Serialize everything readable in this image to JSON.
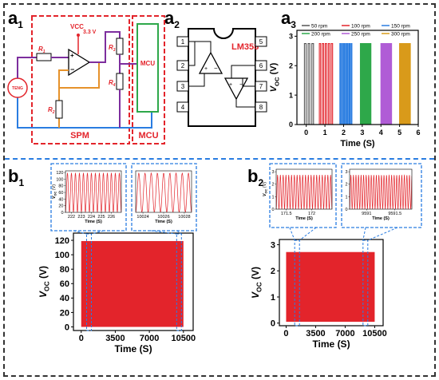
{
  "labels": {
    "a1": "a",
    "a1s": "1",
    "a2": "a",
    "a2s": "2",
    "a3": "a",
    "a3s": "3",
    "b1": "b",
    "b1s": "1",
    "b2": "b",
    "b2s": "2"
  },
  "circuit": {
    "vcc": "VCC",
    "vcc_value": "3.3 V",
    "r1": "R",
    "r1s": "1",
    "r2": "R",
    "r2s": "2",
    "r3": "R",
    "r3s": "3",
    "r4": "R",
    "r4s": "4",
    "teng": "TENG",
    "mcu_box": "MCU",
    "spm": "SPM",
    "mcu": "MCU",
    "colors": {
      "red": "#e3242b",
      "purple": "#7d2e9e",
      "orange": "#e6922b",
      "blue": "#2a7de1",
      "green": "#2ea84a"
    }
  },
  "ic": {
    "name": "LM358",
    "pins": [
      "1",
      "2",
      "3",
      "4",
      "5",
      "6",
      "7",
      "8"
    ]
  },
  "chart_data": [
    {
      "id": "a3",
      "type": "line",
      "xlabel": "Time (S)",
      "ylabel": "V",
      "ylabel_sub": "OC",
      "ylabel_unit": " (V)",
      "xlim": [
        -0.5,
        6
      ],
      "ylim": [
        0,
        3.2
      ],
      "xticks": [
        0,
        1,
        2,
        3,
        4,
        5,
        6
      ],
      "yticks": [
        0,
        1,
        2,
        3
      ],
      "series": [
        {
          "name": "50 rpm",
          "color": "#555555",
          "bursts": [
            [
              -0.1,
              0.5
            ]
          ],
          "pulses": 3,
          "peak": 2.75
        },
        {
          "name": "100 rpm",
          "color": "#e3242b",
          "bursts": [
            [
              0.7,
              1.5
            ]
          ],
          "pulses": 5,
          "peak": 2.75
        },
        {
          "name": "150 rpm",
          "color": "#2a7de1",
          "bursts": [
            [
              1.8,
              2.5
            ]
          ],
          "pulses": 7,
          "peak": 2.75
        },
        {
          "name": "200 rpm",
          "color": "#2ea84a",
          "bursts": [
            [
              2.9,
              3.5
            ]
          ],
          "pulses": 9,
          "peak": 2.75
        },
        {
          "name": "250 rpm",
          "color": "#b05cd6",
          "bursts": [
            [
              4.0,
              4.6
            ]
          ],
          "pulses": 11,
          "peak": 2.75
        },
        {
          "name": "300 rpm",
          "color": "#d99a1a",
          "bursts": [
            [
              5.0,
              5.6
            ]
          ],
          "pulses": 13,
          "peak": 2.75
        }
      ]
    },
    {
      "id": "b1",
      "type": "area",
      "xlabel": "Time (S)",
      "ylabel": "V",
      "ylabel_sub": "OC",
      "ylabel_unit": " (V)",
      "xlim": [
        -800,
        11500
      ],
      "ylim": [
        -5,
        130
      ],
      "xticks": [
        0,
        3500,
        7000,
        10500
      ],
      "yticks": [
        0,
        20,
        40,
        60,
        80,
        100,
        120
      ],
      "signal": {
        "x_start": 0,
        "x_end": 10500,
        "min": 0,
        "max": 119,
        "color": "#e3242b"
      }
    },
    {
      "id": "b1-inset1",
      "type": "line",
      "xlabel": "Time (S)",
      "ylabel": "V",
      "ylabel_sub": "OC",
      "ylabel_unit": " (V)",
      "xlim": [
        221.4,
        227
      ],
      "ylim": [
        0,
        125
      ],
      "xticks": [
        222,
        223,
        224,
        225,
        226
      ],
      "yticks": [
        0,
        20,
        40,
        60,
        80,
        100,
        120
      ],
      "wave": {
        "x_start": 221.4,
        "x_end": 227,
        "period": 0.4,
        "min": 0,
        "max": 119,
        "color": "#e3242b"
      }
    },
    {
      "id": "b1-inset2",
      "type": "line",
      "xlabel": "Time (S)",
      "ylabel": "",
      "ylabel_sub": "",
      "ylabel_unit": "",
      "xlim": [
        10023.3,
        10028.7
      ],
      "ylim": [
        0,
        125
      ],
      "xticks": [
        10024,
        10026,
        10028
      ],
      "yticks": [],
      "wave": {
        "x_start": 10023.3,
        "x_end": 10028.7,
        "period": 0.6,
        "min": 0,
        "max": 119,
        "color": "#e3242b"
      }
    },
    {
      "id": "b2",
      "type": "area",
      "xlabel": "Time (S)",
      "ylabel": "V",
      "ylabel_sub": "OC",
      "ylabel_unit": " (V)",
      "xlim": [
        -800,
        11500
      ],
      "ylim": [
        -0.1,
        3.2
      ],
      "xticks": [
        0,
        3500,
        7000,
        10500
      ],
      "yticks": [
        0,
        1,
        2,
        3
      ],
      "signal": {
        "x_start": 0,
        "x_end": 10500,
        "min": 0.05,
        "max": 2.72,
        "color": "#e3242b"
      }
    },
    {
      "id": "b2-inset1",
      "type": "line",
      "xlabel": "Time (S)",
      "ylabel": "V",
      "ylabel_sub": "OC",
      "ylabel_unit": " (V)",
      "xlim": [
        171.3,
        172.4
      ],
      "ylim": [
        0,
        3.2
      ],
      "xticks": [
        171.5,
        172.0
      ],
      "yticks": [
        0,
        1,
        2,
        3
      ],
      "wave": {
        "x_start": 171.3,
        "x_end": 172.4,
        "period": 0.055,
        "min": 0,
        "max": 2.75,
        "color": "#e3242b"
      }
    },
    {
      "id": "b2-inset2",
      "type": "line",
      "xlabel": "Time (S)",
      "ylabel": "",
      "ylabel_sub": "",
      "ylabel_unit": "",
      "xlim": [
        9590.7,
        9591.8
      ],
      "ylim": [
        0,
        3.2
      ],
      "xticks": [
        9591.0,
        9591.5
      ],
      "yticks": [
        0,
        1,
        2,
        3
      ],
      "wave": {
        "x_start": 9590.7,
        "x_end": 9591.8,
        "period": 0.045,
        "min": 0,
        "max": 2.75,
        "color": "#e3242b"
      }
    }
  ]
}
